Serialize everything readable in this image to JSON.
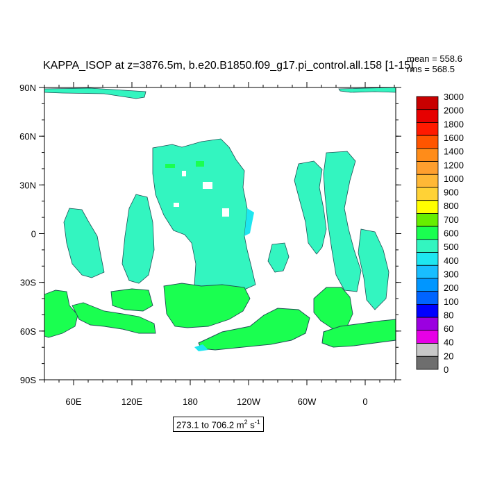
{
  "title": "KAPPA_ISOP at z=3876.5m, b.e20.B1850.f09_g17.pi_control.all.158 [1-15]",
  "stats": {
    "mean": "mean = 558.6",
    "rms": "rms = 568.5"
  },
  "range": {
    "text": "273.1 to 706.2 m",
    "exp2": "2",
    "unit_s": " s",
    "exp_neg1": "-1"
  },
  "axes": {
    "lat_labels": [
      "90N",
      "60N",
      "30N",
      "0",
      "30S",
      "60S",
      "90S"
    ],
    "lon_labels": [
      "60E",
      "120E",
      "180",
      "120W",
      "60W",
      "0"
    ]
  },
  "colorbar": {
    "labels": [
      "3000",
      "2000",
      "1800",
      "1600",
      "1400",
      "1200",
      "1000",
      "900",
      "800",
      "700",
      "600",
      "500",
      "400",
      "300",
      "200",
      "100",
      "80",
      "60",
      "40",
      "20",
      "0"
    ],
    "colors": [
      "#c80000",
      "#e60000",
      "#ff1a00",
      "#ff5500",
      "#ff8c19",
      "#ff9f2e",
      "#ffb836",
      "#ffd236",
      "#ffff00",
      "#66ee00",
      "#1aff50",
      "#33f5c0",
      "#1ee6f0",
      "#19beff",
      "#0096ff",
      "#0064ff",
      "#0000ff",
      "#9b00e0",
      "#e600e6",
      "#c8c8c8",
      "#6e6e6e"
    ]
  },
  "map_colors": {
    "ocean": "#33f5c0",
    "land": "#ffffff",
    "deep": "#1ee6f0",
    "band": "#1aff50",
    "coast": "#1f4f55"
  }
}
